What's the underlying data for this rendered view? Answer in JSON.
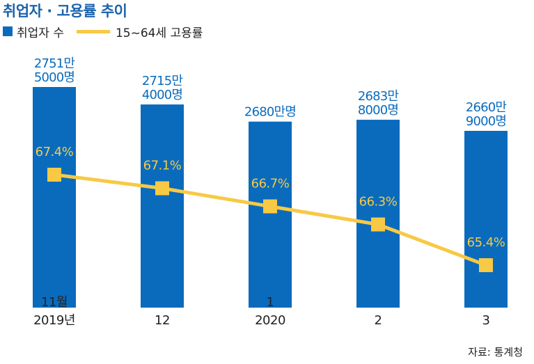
{
  "title": "취업자 · 고용률 추이",
  "legend": {
    "bar_label": "취업자 수",
    "line_label": "15~64세 고용률"
  },
  "source": "자료: 통계청",
  "colors": {
    "bar": "#0a6bbd",
    "line": "#f7c944",
    "title": "#1a63ad",
    "text": "#222222"
  },
  "chart_data": {
    "type": "bar",
    "categories": [
      "11월\n2019년",
      "12",
      "1\n2020",
      "2",
      "3"
    ],
    "series": [
      {
        "name": "취업자 수",
        "type": "bar",
        "values": [
          27515000,
          27154000,
          26800000,
          26838000,
          26609000
        ],
        "labels": [
          "2751만\n5000명",
          "2715만\n4000명",
          "2680만명",
          "2683만\n8000명",
          "2660만\n9000명"
        ]
      },
      {
        "name": "15~64세 고용률",
        "type": "line",
        "values": [
          67.4,
          67.1,
          66.7,
          66.3,
          65.4
        ],
        "labels": [
          "67.4%",
          "67.1%",
          "66.7%",
          "66.3%",
          "65.4%"
        ]
      }
    ]
  }
}
